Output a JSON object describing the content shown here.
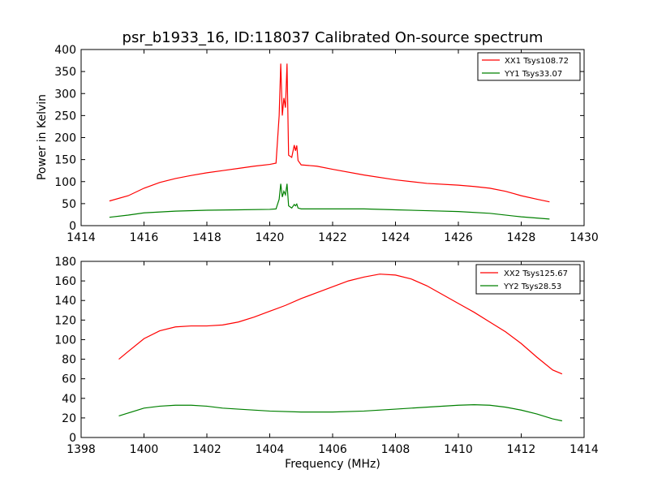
{
  "chart_data": [
    {
      "type": "line",
      "title": "psr_b1933_16, ID:118037 Calibrated On-source spectrum",
      "xlabel": "",
      "ylabel": "Power in Kelvin",
      "xlim": [
        1414,
        1430
      ],
      "ylim": [
        0,
        400
      ],
      "xticks": [
        1414,
        1416,
        1418,
        1420,
        1422,
        1424,
        1426,
        1428,
        1430
      ],
      "yticks": [
        0,
        50,
        100,
        150,
        200,
        250,
        300,
        350,
        400
      ],
      "grid": false,
      "legend": "top-right",
      "series": [
        {
          "name": "XX1 Tsys108.72",
          "color": "#ff0000",
          "x": [
            1414.9,
            1415.5,
            1416.0,
            1416.5,
            1417.0,
            1417.5,
            1418.0,
            1418.5,
            1419.0,
            1419.5,
            1420.0,
            1420.2,
            1420.3,
            1420.35,
            1420.4,
            1420.45,
            1420.5,
            1420.55,
            1420.6,
            1420.7,
            1420.78,
            1420.82,
            1420.86,
            1420.9,
            1421.0,
            1421.5,
            1422.0,
            1423.0,
            1424.0,
            1425.0,
            1426.0,
            1426.5,
            1427.0,
            1427.5,
            1428.0,
            1428.5,
            1428.9
          ],
          "y": [
            56,
            68,
            85,
            98,
            107,
            114,
            120,
            125,
            130,
            135,
            139,
            142,
            250,
            368,
            250,
            290,
            268,
            368,
            160,
            155,
            183,
            170,
            182,
            148,
            138,
            135,
            128,
            115,
            104,
            96,
            92,
            89,
            85,
            78,
            68,
            60,
            54
          ]
        },
        {
          "name": "YY1 Tsys33.07",
          "color": "#008000",
          "x": [
            1414.9,
            1415.5,
            1416.0,
            1417.0,
            1418.0,
            1419.0,
            1420.0,
            1420.2,
            1420.3,
            1420.35,
            1420.4,
            1420.45,
            1420.5,
            1420.55,
            1420.6,
            1420.7,
            1420.78,
            1420.82,
            1420.86,
            1420.9,
            1421.0,
            1422.0,
            1423.0,
            1424.0,
            1425.0,
            1426.0,
            1427.0,
            1428.0,
            1428.9
          ],
          "y": [
            19,
            24,
            29,
            33,
            35,
            36,
            37,
            38,
            60,
            95,
            65,
            78,
            70,
            95,
            45,
            40,
            48,
            45,
            49,
            40,
            38,
            38,
            38,
            36,
            34,
            32,
            28,
            20,
            15
          ]
        }
      ]
    },
    {
      "type": "line",
      "title": "",
      "xlabel": "Frequency (MHz)",
      "ylabel": "",
      "xlim": [
        1398,
        1414
      ],
      "ylim": [
        0,
        180
      ],
      "xticks": [
        1398,
        1400,
        1402,
        1404,
        1406,
        1408,
        1410,
        1412,
        1414
      ],
      "yticks": [
        0,
        20,
        40,
        60,
        80,
        100,
        120,
        140,
        160,
        180
      ],
      "grid": false,
      "legend": "top-right",
      "series": [
        {
          "name": "XX2 Tsys125.67",
          "color": "#ff0000",
          "x": [
            1399.2,
            1399.5,
            1400.0,
            1400.5,
            1401.0,
            1401.5,
            1402.0,
            1402.5,
            1403.0,
            1403.5,
            1404.0,
            1404.5,
            1405.0,
            1405.5,
            1406.0,
            1406.5,
            1407.0,
            1407.5,
            1408.0,
            1408.5,
            1409.0,
            1409.5,
            1410.0,
            1410.5,
            1411.0,
            1411.5,
            1412.0,
            1412.5,
            1413.0,
            1413.3
          ],
          "y": [
            80,
            88,
            101,
            109,
            113,
            114,
            114,
            115,
            118,
            123,
            129,
            135,
            142,
            148,
            154,
            160,
            164,
            167,
            166,
            162,
            155,
            146,
            137,
            128,
            118,
            108,
            96,
            82,
            69,
            65
          ]
        },
        {
          "name": "YY2 Tsys28.53",
          "color": "#008000",
          "x": [
            1399.2,
            1399.5,
            1400.0,
            1400.5,
            1401.0,
            1401.5,
            1402.0,
            1402.5,
            1403.0,
            1404.0,
            1405.0,
            1406.0,
            1407.0,
            1408.0,
            1409.0,
            1410.0,
            1410.5,
            1411.0,
            1411.5,
            1412.0,
            1412.5,
            1413.0,
            1413.3
          ],
          "y": [
            22,
            25,
            30,
            32,
            33,
            33,
            32,
            30,
            29,
            27,
            26,
            26,
            27,
            29,
            31,
            33,
            33.5,
            33,
            31,
            28,
            24,
            19,
            17
          ]
        }
      ]
    }
  ]
}
